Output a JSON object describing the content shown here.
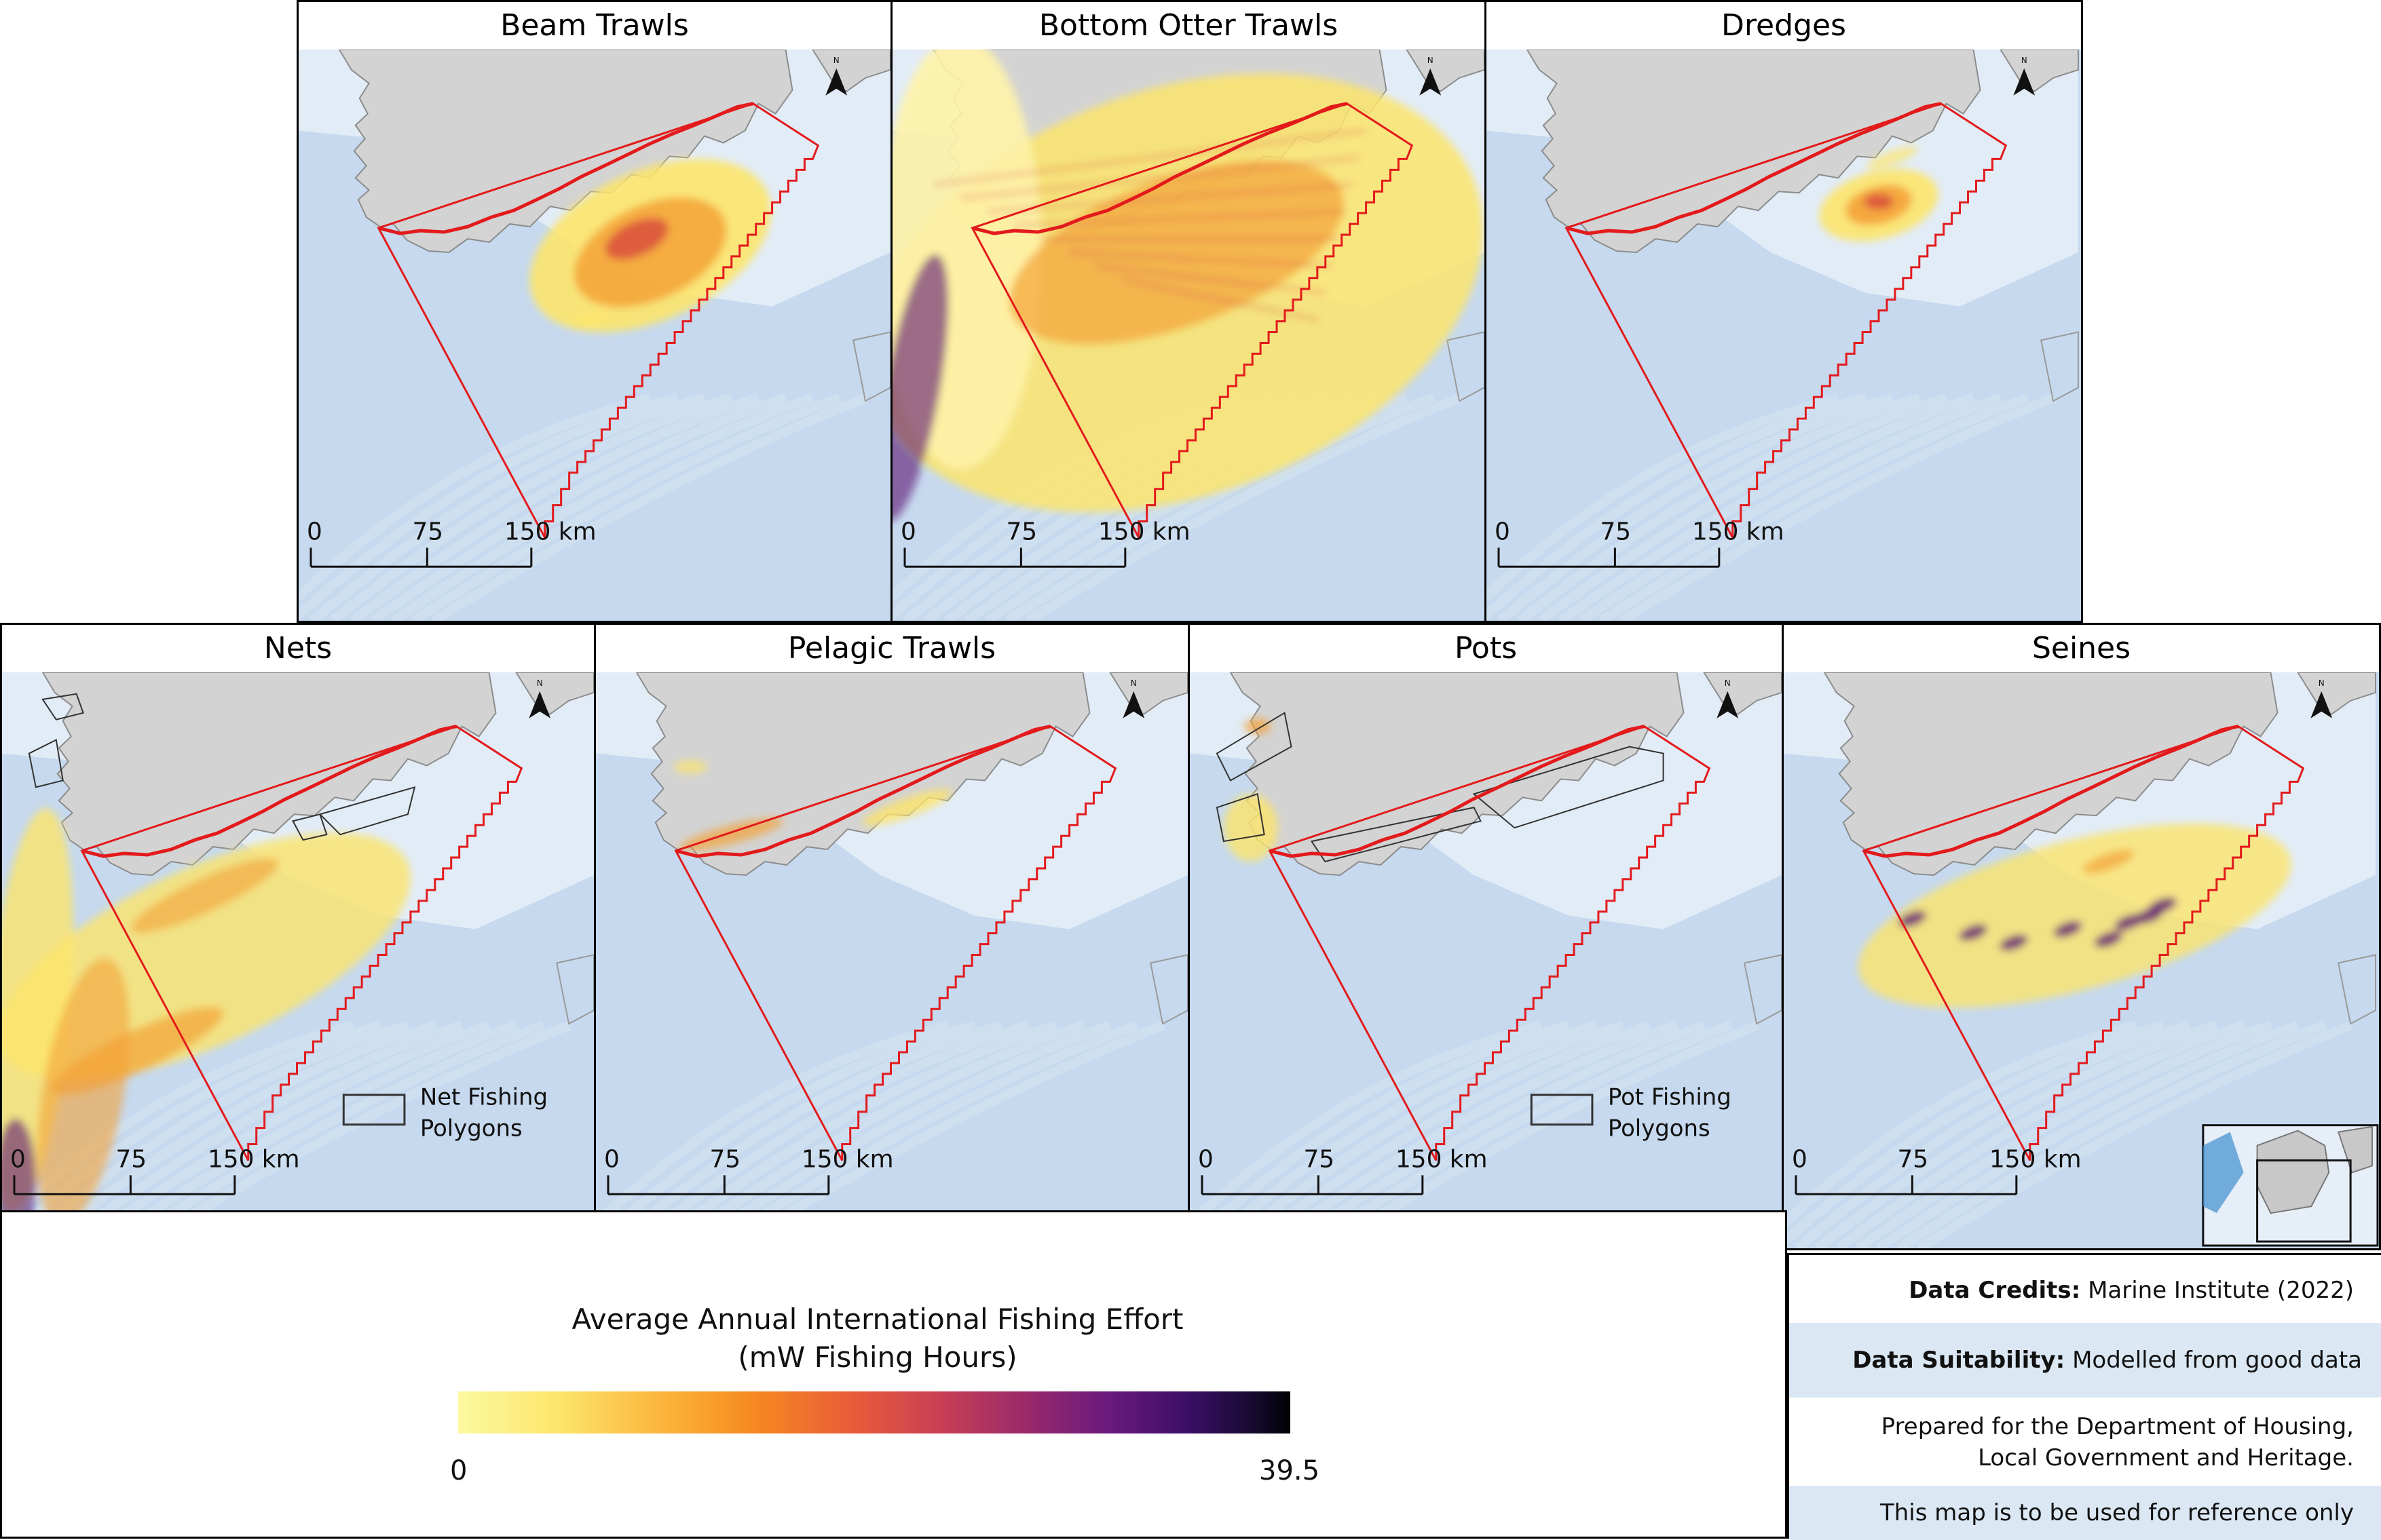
{
  "panels": [
    {
      "title": "Beam Trawls"
    },
    {
      "title": "Bottom Otter Trawls"
    },
    {
      "title": "Dredges"
    },
    {
      "title": "Nets",
      "polygon_legend": [
        "Net Fishing",
        "Polygons"
      ]
    },
    {
      "title": "Pelagic Trawls"
    },
    {
      "title": "Pots",
      "polygon_legend": [
        "Pot Fishing",
        "Polygons"
      ]
    },
    {
      "title": "Seines"
    }
  ],
  "scalebar": {
    "zero": "0",
    "mid": "75",
    "end": "150 km"
  },
  "north_arrow": {
    "letter": "N",
    "icon": "north-arrow-icon"
  },
  "legend": {
    "title_line1": "Average Annual International Fishing Effort",
    "title_line2": "(mW Fishing Hours)",
    "min": "0",
    "max": "39.5",
    "ramp_colors": [
      "#fcf9a0",
      "#fbb33a",
      "#e8593a",
      "#9b2a6a",
      "#3a0e64",
      "#000004"
    ]
  },
  "credits": {
    "data_credits_label": "Data Credits:",
    "data_credits_value": "Marine Institute (2022)",
    "data_suitability_label": "Data Suitability:",
    "data_suitability_value": "Modelled from good data",
    "prepared_line1": "Prepared for the Department of Housing,",
    "prepared_line2": "Local Government and Heritage.",
    "disclaimer": "This map is to be used for reference only"
  },
  "colors": {
    "sea_deep": "#c6d9ee",
    "sea_shallow": "#e2ecf7",
    "land": "#d3d3d3",
    "boundary": "#e31a1c",
    "inset_sea": "#3f8fd0"
  }
}
